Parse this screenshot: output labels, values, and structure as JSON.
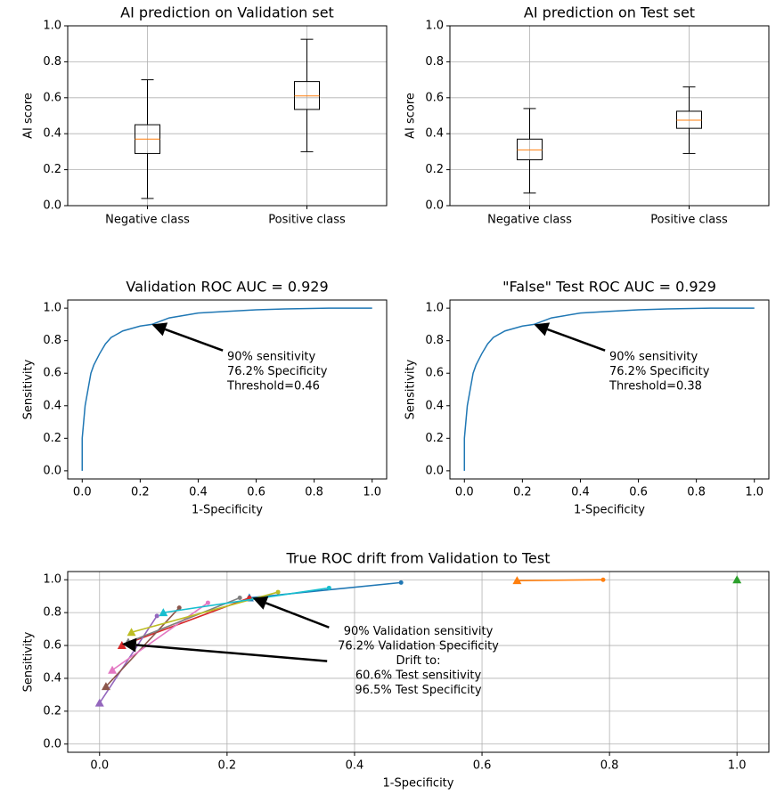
{
  "chart_data": [
    {
      "type": "box",
      "title": "AI prediction on Validation set",
      "ylabel": "AI score",
      "categories": [
        "Negative class",
        "Positive class"
      ],
      "boxes": [
        {
          "whislo": 0.04,
          "q1": 0.29,
          "med": 0.37,
          "q3": 0.45,
          "whishi": 0.7
        },
        {
          "whislo": 0.3,
          "q1": 0.535,
          "med": 0.61,
          "q3": 0.69,
          "whishi": 0.925
        }
      ],
      "color": "#000000",
      "median_color": "#ff7f0e",
      "ylim": [
        0,
        1
      ],
      "yticks": [
        {
          "value": 0,
          "label": "0.0"
        },
        0.2,
        0.4,
        0.6,
        0.8,
        {
          "value": 1,
          "label": "1.0"
        }
      ],
      "grid": true
    },
    {
      "type": "box",
      "title": "AI prediction on Test set",
      "ylabel": "AI score",
      "categories": [
        "Negative class",
        "Positive class"
      ],
      "boxes": [
        {
          "whislo": 0.07,
          "q1": 0.255,
          "med": 0.31,
          "q3": 0.37,
          "whishi": 0.54
        },
        {
          "whislo": 0.29,
          "q1": 0.43,
          "med": 0.475,
          "q3": 0.525,
          "whishi": 0.66
        }
      ],
      "color": "#000000",
      "median_color": "#ff7f0e",
      "ylim": [
        0,
        1
      ],
      "yticks": [
        {
          "value": 0,
          "label": "0.0"
        },
        0.2,
        0.4,
        0.6,
        0.8,
        {
          "value": 1,
          "label": "1.0"
        }
      ],
      "grid": true
    },
    {
      "type": "line",
      "title": "Validation ROC AUC = 0.929",
      "xlabel": "1-Specificity",
      "ylabel": "Sensitivity",
      "series": [
        {
          "color": "#1f77b4",
          "x": [
            0,
            0,
            0.01,
            0.02,
            0.03,
            0.04,
            0.06,
            0.08,
            0.1,
            0.14,
            0.2,
            0.24,
            0.3,
            0.4,
            0.5,
            0.6,
            0.7,
            0.85,
            1
          ],
          "y": [
            0,
            0.2,
            0.4,
            0.5,
            0.6,
            0.65,
            0.72,
            0.78,
            0.82,
            0.86,
            0.89,
            0.9,
            0.94,
            0.97,
            0.98,
            0.99,
            0.995,
            1,
            1
          ]
        }
      ],
      "xlim": [
        -0.05,
        1.05
      ],
      "ylim": [
        -0.05,
        1.05
      ],
      "xticks": [
        {
          "value": 0,
          "label": "0.0"
        },
        0.2,
        0.4,
        0.6,
        0.8,
        {
          "value": 1,
          "label": "1.0"
        }
      ],
      "yticks": [
        {
          "value": 0,
          "label": "0.0"
        },
        0.2,
        0.4,
        0.6,
        0.8,
        {
          "value": 1,
          "label": "1.0"
        }
      ],
      "grid": false,
      "annotation": {
        "text": [
          "90% sensitivity",
          "76.2% Specificity",
          "Threshold=0.46"
        ],
        "align": "left",
        "text_xy": [
          0.5,
          0.7
        ],
        "arrows": [
          {
            "xy": [
              0.24,
              0.9
            ],
            "from": [
              0.485,
              0.74
            ]
          }
        ]
      }
    },
    {
      "type": "line",
      "title": "\"False\" Test ROC AUC = 0.929",
      "xlabel": "1-Specificity",
      "ylabel": "Sensitivity",
      "series": [
        {
          "color": "#1f77b4",
          "x": [
            0,
            0,
            0.01,
            0.02,
            0.03,
            0.04,
            0.06,
            0.08,
            0.1,
            0.14,
            0.2,
            0.24,
            0.3,
            0.4,
            0.5,
            0.6,
            0.7,
            0.85,
            1
          ],
          "y": [
            0,
            0.2,
            0.4,
            0.5,
            0.6,
            0.65,
            0.72,
            0.78,
            0.82,
            0.86,
            0.89,
            0.9,
            0.94,
            0.97,
            0.98,
            0.99,
            0.995,
            1,
            1
          ]
        }
      ],
      "xlim": [
        -0.05,
        1.05
      ],
      "ylim": [
        -0.05,
        1.05
      ],
      "xticks": [
        {
          "value": 0,
          "label": "0.0"
        },
        0.2,
        0.4,
        0.6,
        0.8,
        {
          "value": 1,
          "label": "1.0"
        }
      ],
      "yticks": [
        {
          "value": 0,
          "label": "0.0"
        },
        0.2,
        0.4,
        0.6,
        0.8,
        {
          "value": 1,
          "label": "1.0"
        }
      ],
      "grid": false,
      "annotation": {
        "text": [
          "90% sensitivity",
          "76.2% Specificity",
          "Threshold=0.38"
        ],
        "align": "left",
        "text_xy": [
          0.5,
          0.7
        ],
        "arrows": [
          {
            "xy": [
              0.24,
              0.9
            ],
            "from": [
              0.485,
              0.74
            ]
          }
        ]
      }
    },
    {
      "type": "line",
      "title": "True ROC drift from Validation to Test",
      "xlabel": "1-Specificity",
      "ylabel": "Sensitivity",
      "markers": [
        "circle",
        "triangle"
      ],
      "series": [
        {
          "color": "#1f77b4",
          "x": [
            0.473,
            0.235
          ],
          "y": [
            0.983,
            0.89
          ]
        },
        {
          "color": "#ff7f0e",
          "x": [
            0.79,
            0.655
          ],
          "y": [
            1,
            0.995
          ]
        },
        {
          "color": "#2ca02c",
          "x": [
            1,
            1
          ],
          "y": [
            1,
            1
          ]
        },
        {
          "color": "#d62728",
          "x": [
            0.235,
            0.035
          ],
          "y": [
            0.89,
            0.6
          ]
        },
        {
          "color": "#9467bd",
          "x": [
            0.09,
            0
          ],
          "y": [
            0.78,
            0.25
          ]
        },
        {
          "color": "#8c564b",
          "x": [
            0.125,
            0.01
          ],
          "y": [
            0.83,
            0.35
          ]
        },
        {
          "color": "#e377c2",
          "x": [
            0.17,
            0.02
          ],
          "y": [
            0.86,
            0.45
          ]
        },
        {
          "color": "#7f7f7f",
          "x": [
            0.22,
            0.045
          ],
          "y": [
            0.89,
            0.62
          ]
        },
        {
          "color": "#bcbd22",
          "x": [
            0.28,
            0.05
          ],
          "y": [
            0.925,
            0.68
          ]
        },
        {
          "color": "#17becf",
          "x": [
            0.36,
            0.1
          ],
          "y": [
            0.95,
            0.8
          ]
        }
      ],
      "xlim": [
        -0.05,
        1.05
      ],
      "ylim": [
        -0.05,
        1.05
      ],
      "xticks": [
        {
          "value": 0,
          "label": "0.0"
        },
        0.2,
        0.4,
        0.6,
        0.8,
        {
          "value": 1,
          "label": "1.0"
        }
      ],
      "yticks": [
        {
          "value": 0,
          "label": "0.0"
        },
        0.2,
        0.4,
        0.6,
        0.8,
        {
          "value": 1,
          "label": "1.0"
        }
      ],
      "grid": true,
      "annotation": {
        "text": [
          "90% Validation sensitivity",
          "76.2% Validation Specificity",
          "Drift to:",
          "60.6% Test sensitivity",
          "96.5% Test Specificity"
        ],
        "align": "center",
        "text_xy": [
          0.5,
          0.685
        ],
        "arrows": [
          {
            "xy": [
              0.24,
              0.89
            ],
            "from": [
              0.36,
              0.71
            ]
          },
          {
            "xy": [
              0.035,
              0.61
            ],
            "from": [
              0.357,
              0.505
            ]
          }
        ]
      }
    }
  ]
}
